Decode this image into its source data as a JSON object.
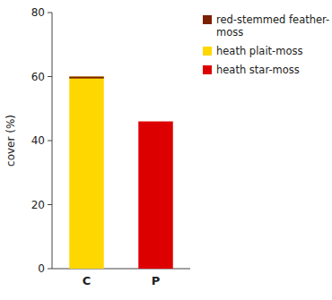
{
  "chart_data": {
    "type": "bar",
    "categories": [
      "C",
      "P"
    ],
    "series": [
      {
        "name": "red-stemmed feather-\nmoss",
        "color": "#7B2000",
        "values": [
          0.6,
          null
        ]
      },
      {
        "name": "heath plait-moss",
        "color": "#FFD700",
        "values": [
          60,
          null
        ]
      },
      {
        "name": "heath star-moss",
        "color": "#DD0000",
        "values": [
          null,
          46
        ]
      }
    ],
    "y_label": "cover (%)",
    "ylim": [
      0,
      80
    ],
    "yticks": [
      0,
      20,
      40,
      60,
      80
    ],
    "grid": false,
    "legend": "right"
  }
}
